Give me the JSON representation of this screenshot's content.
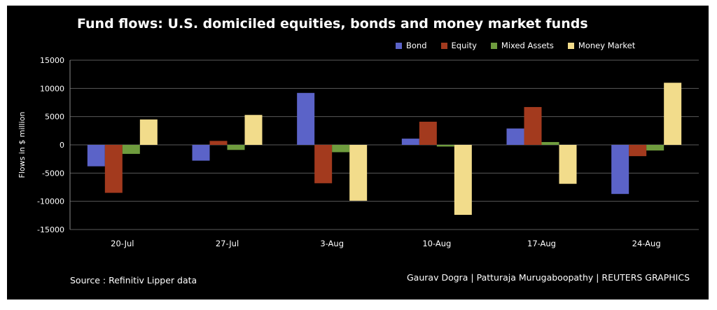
{
  "chart_data": {
    "type": "bar",
    "title": "Fund flows: U.S. domiciled equities, bonds and money market funds",
    "ylabel": "Flows in $ million",
    "xlabel": "",
    "ylim": [
      -15000,
      15000
    ],
    "yticks": [
      15000,
      10000,
      5000,
      0,
      -5000,
      -10000,
      -15000
    ],
    "grid": true,
    "legend_position": "top-right",
    "categories": [
      "20-Jul",
      "27-Jul",
      "3-Aug",
      "10-Aug",
      "17-Aug",
      "24-Aug"
    ],
    "series": [
      {
        "name": "Bond",
        "color": "#5b63c8",
        "values": [
          -3800,
          -2800,
          9200,
          1100,
          2900,
          -8700
        ]
      },
      {
        "name": "Equity",
        "color": "#a33a1e",
        "values": [
          -8500,
          700,
          -6800,
          4100,
          6700,
          -2000
        ]
      },
      {
        "name": "Mixed Assets",
        "color": "#6f9c3e",
        "values": [
          -1600,
          -900,
          -1300,
          -300,
          500,
          -1000
        ]
      },
      {
        "name": "Money Market",
        "color": "#f2dc8b",
        "values": [
          4500,
          5300,
          -9900,
          -12400,
          -6900,
          11000
        ]
      }
    ],
    "source": "Source : Refinitiv Lipper data",
    "credit": "Gaurav Dogra  |  Patturaja Murugaboopathy  |  REUTERS GRAPHICS"
  }
}
